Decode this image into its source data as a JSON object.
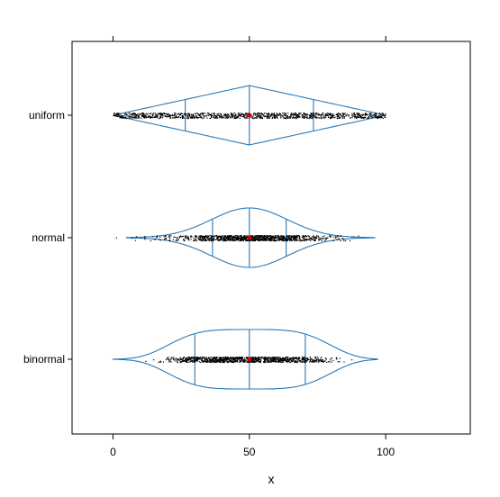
{
  "chart_data": {
    "type": "violin",
    "xlabel": "x",
    "ylabel": "",
    "xlim": [
      -15,
      131
    ],
    "x_ticks": [
      0,
      50,
      100
    ],
    "x_tick_labels": [
      "0",
      "50",
      "100"
    ],
    "grid": false,
    "colors": {
      "outline": "#2a7ab8",
      "points": "#000000",
      "mean_marker": "#cc0000"
    },
    "categories": [
      "uniform",
      "normal",
      "binormal"
    ],
    "series": [
      {
        "category": "uniform",
        "distribution": "uniform",
        "min": 0,
        "max": 100,
        "center": 50,
        "spread": 50,
        "quartiles": [
          26.5,
          50,
          73.5
        ],
        "mean": 50
      },
      {
        "category": "normal",
        "distribution": "normal",
        "min": 5,
        "max": 96,
        "center": 50,
        "spread": 14,
        "quartiles": [
          36.5,
          50,
          63.5
        ],
        "mean": 50
      },
      {
        "category": "binormal",
        "distribution": "binormal",
        "min": 0,
        "max": 97,
        "center": 50,
        "spread": 27,
        "quartiles": [
          30,
          50,
          70.5
        ],
        "mean": 50
      }
    ]
  }
}
